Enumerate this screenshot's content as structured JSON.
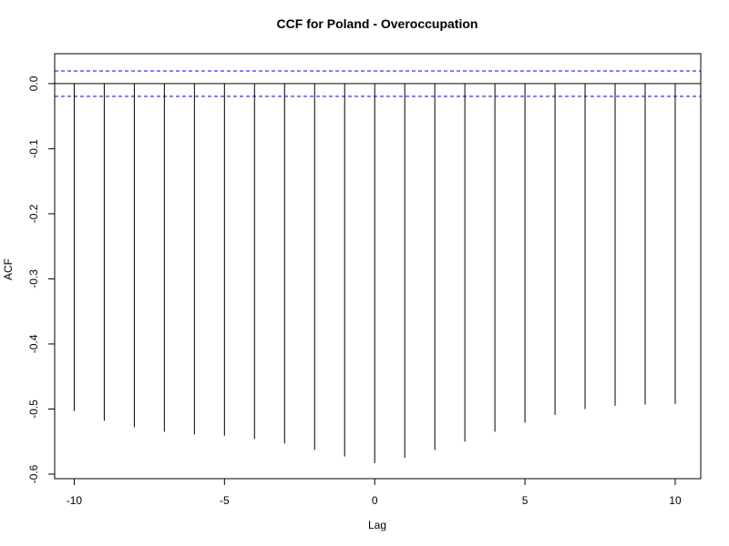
{
  "chart_data": {
    "type": "bar",
    "subtype": "ccf-lollipop",
    "title": "CCF for Poland - Overoccupation",
    "xlabel": "Lag",
    "ylabel": "ACF",
    "x": [
      -10,
      -9,
      -8,
      -7,
      -6,
      -5,
      -4,
      -3,
      -2,
      -1,
      0,
      1,
      2,
      3,
      4,
      5,
      6,
      7,
      8,
      9,
      10
    ],
    "values": [
      -0.503,
      -0.518,
      -0.528,
      -0.535,
      -0.539,
      -0.541,
      -0.546,
      -0.553,
      -0.563,
      -0.573,
      -0.583,
      -0.575,
      -0.563,
      -0.55,
      -0.535,
      -0.521,
      -0.509,
      -0.5,
      -0.495,
      -0.493,
      -0.492
    ],
    "xlim": [
      -10.65,
      10.85
    ],
    "ylim": [
      -0.607,
      0.046
    ],
    "x_ticks": [
      -10,
      -5,
      0,
      5,
      10
    ],
    "x_tick_labels": [
      "-10",
      "-5",
      "0",
      "5",
      "10"
    ],
    "y_ticks": [
      0.0,
      -0.1,
      -0.2,
      -0.3,
      -0.4,
      -0.5,
      -0.6
    ],
    "y_tick_labels": [
      "0.0",
      "-0.1",
      "-0.2",
      "-0.3",
      "-0.4",
      "-0.5",
      "-0.6"
    ],
    "confidence_bounds": [
      0.0195,
      -0.0195
    ],
    "colors": {
      "bars": "#000000",
      "zero_line": "#000000",
      "confidence_lines": "#0000ff",
      "frame": "#000000"
    },
    "grid": false
  }
}
